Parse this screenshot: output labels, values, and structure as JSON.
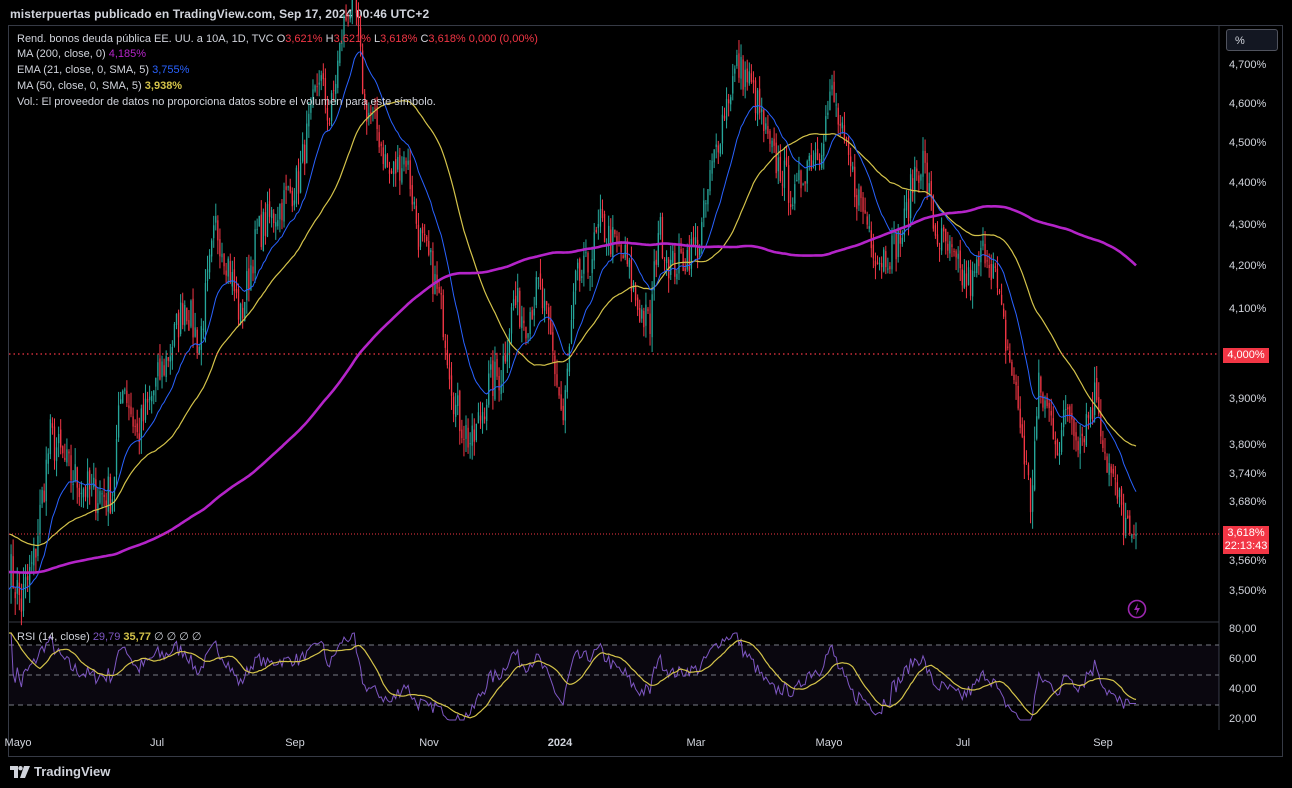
{
  "header": {
    "publisher": "misterpuertas publicado en TradingView.com, Sep 17, 2024 00:46 UTC+2"
  },
  "legend": {
    "symbol": "Rend. bonos deuda pública EE. UU. a 10A, 1D, TVC",
    "o_key": "O",
    "o_val": "3,621%",
    "h_key": "H",
    "h_val": "3,621%",
    "l_key": "L",
    "l_val": "3,618%",
    "c_key": "C",
    "c_val": "3,618%",
    "change": "0,000 (0,00%)",
    "ma200": "MA (200, close, 0)",
    "ma200_val": "4,185%",
    "ema21": "EMA (21, close, 0, SMA, 5)",
    "ema21_val": "3,755%",
    "ma50": "MA (50, close, 0, SMA, 5)",
    "ma50_val": "3,938%",
    "vol": "Vol.: El proveedor de datos no proporciona datos sobre el volumen para este símbolo."
  },
  "rsi_legend": {
    "label": "RSI (14, close)",
    "rsi": "29,79",
    "ma": "35,77",
    "extra": "∅ ∅ ∅ ∅"
  },
  "unit_button": "%",
  "price_badge": {
    "value": "3,618%",
    "countdown": "22:13:43"
  },
  "level_badge": "4,000%",
  "brand": "TradingView",
  "chart_data": [
    {
      "type": "candlestick",
      "title": "Rend. bonos deuda pública EE. UU. a 10A, 1D, TVC",
      "ylabel": "%",
      "y_ticks": [
        "4,700%",
        "4,600%",
        "4,500%",
        "4,400%",
        "4,300%",
        "4,200%",
        "4,100%",
        "3,900%",
        "3,800%",
        "3,740%",
        "3,680%",
        "3,560%",
        "3,500%"
      ],
      "y_tick_values": [
        4.7,
        4.6,
        4.5,
        4.4,
        4.3,
        4.2,
        4.1,
        3.9,
        3.8,
        3.74,
        3.68,
        3.56,
        3.5
      ],
      "x_ticks": [
        "Mayo",
        "Jul",
        "Sep",
        "Nov",
        "2024",
        "Mar",
        "Mayo",
        "Jul",
        "Sep"
      ],
      "ylim": [
        3.45,
        4.8
      ],
      "horizontal_line": 4.0,
      "last_price": 3.618,
      "close_anchors": [
        [
          0,
          3.55
        ],
        [
          6,
          3.48
        ],
        [
          12,
          3.56
        ],
        [
          20,
          3.82
        ],
        [
          30,
          3.74
        ],
        [
          40,
          3.7
        ],
        [
          50,
          3.7
        ],
        [
          55,
          3.95
        ],
        [
          62,
          3.82
        ],
        [
          70,
          3.92
        ],
        [
          78,
          4.01
        ],
        [
          85,
          4.12
        ],
        [
          92,
          4.02
        ],
        [
          100,
          4.3
        ],
        [
          106,
          4.21
        ],
        [
          112,
          4.08
        ],
        [
          120,
          4.28
        ],
        [
          130,
          4.34
        ],
        [
          140,
          4.41
        ],
        [
          150,
          4.68
        ],
        [
          155,
          4.56
        ],
        [
          162,
          4.81
        ],
        [
          167,
          4.88
        ],
        [
          172,
          4.6
        ],
        [
          178,
          4.54
        ],
        [
          184,
          4.42
        ],
        [
          192,
          4.47
        ],
        [
          198,
          4.28
        ],
        [
          204,
          4.2
        ],
        [
          210,
          4.08
        ],
        [
          216,
          3.88
        ],
        [
          224,
          3.8
        ],
        [
          232,
          3.93
        ],
        [
          238,
          3.96
        ],
        [
          244,
          4.12
        ],
        [
          250,
          4.08
        ],
        [
          256,
          4.15
        ],
        [
          262,
          4.03
        ],
        [
          268,
          3.85
        ],
        [
          274,
          4.16
        ],
        [
          280,
          4.2
        ],
        [
          286,
          4.3
        ],
        [
          292,
          4.26
        ],
        [
          298,
          4.22
        ],
        [
          304,
          4.11
        ],
        [
          310,
          4.06
        ],
        [
          314,
          4.3
        ],
        [
          320,
          4.2
        ],
        [
          326,
          4.22
        ],
        [
          334,
          4.26
        ],
        [
          340,
          4.44
        ],
        [
          346,
          4.59
        ],
        [
          352,
          4.7
        ],
        [
          358,
          4.66
        ],
        [
          362,
          4.6
        ],
        [
          368,
          4.48
        ],
        [
          374,
          4.43
        ],
        [
          380,
          4.36
        ],
        [
          386,
          4.46
        ],
        [
          392,
          4.49
        ],
        [
          398,
          4.63
        ],
        [
          404,
          4.49
        ],
        [
          410,
          4.38
        ],
        [
          416,
          4.3
        ],
        [
          420,
          4.22
        ],
        [
          426,
          4.24
        ],
        [
          432,
          4.28
        ],
        [
          438,
          4.43
        ],
        [
          442,
          4.46
        ],
        [
          448,
          4.28
        ],
        [
          454,
          4.24
        ],
        [
          460,
          4.18
        ],
        [
          466,
          4.16
        ],
        [
          472,
          4.25
        ],
        [
          476,
          4.2
        ],
        [
          480,
          4.08
        ],
        [
          486,
          3.94
        ],
        [
          490,
          3.82
        ],
        [
          494,
          3.68
        ],
        [
          498,
          3.92
        ],
        [
          504,
          3.86
        ],
        [
          508,
          3.8
        ],
        [
          512,
          3.89
        ],
        [
          518,
          3.82
        ],
        [
          522,
          3.87
        ],
        [
          526,
          3.92
        ],
        [
          530,
          3.79
        ],
        [
          534,
          3.72
        ],
        [
          538,
          3.66
        ],
        [
          542,
          3.618
        ]
      ],
      "indicators": [
        {
          "name": "MA (200, close, 0)",
          "color": "#b424c8",
          "last": 4.185
        },
        {
          "name": "EMA (21, close, 0, SMA, 5)",
          "color": "#2962ff",
          "last": 3.755
        },
        {
          "name": "MA (50, close, 0, SMA, 5)",
          "color": "#d4c34a",
          "last": 3.938
        }
      ]
    },
    {
      "type": "line",
      "title": "RSI (14, close)",
      "y_ticks": [
        "80,00",
        "60,00",
        "40,00",
        "20,00"
      ],
      "y_tick_values": [
        80,
        60,
        40,
        20
      ],
      "ylim": [
        13,
        82
      ],
      "bands": [
        70,
        50,
        30
      ],
      "last_rsi": 29.79,
      "last_rsi_ma": 35.77
    }
  ],
  "colors": {
    "up": "#26a69a",
    "down": "#f23645",
    "ma200": "#b424c8",
    "ema21": "#2962ff",
    "ma50": "#d4c34a",
    "rsi": "#7e57c2",
    "rsi_ma": "#d4c34a"
  }
}
